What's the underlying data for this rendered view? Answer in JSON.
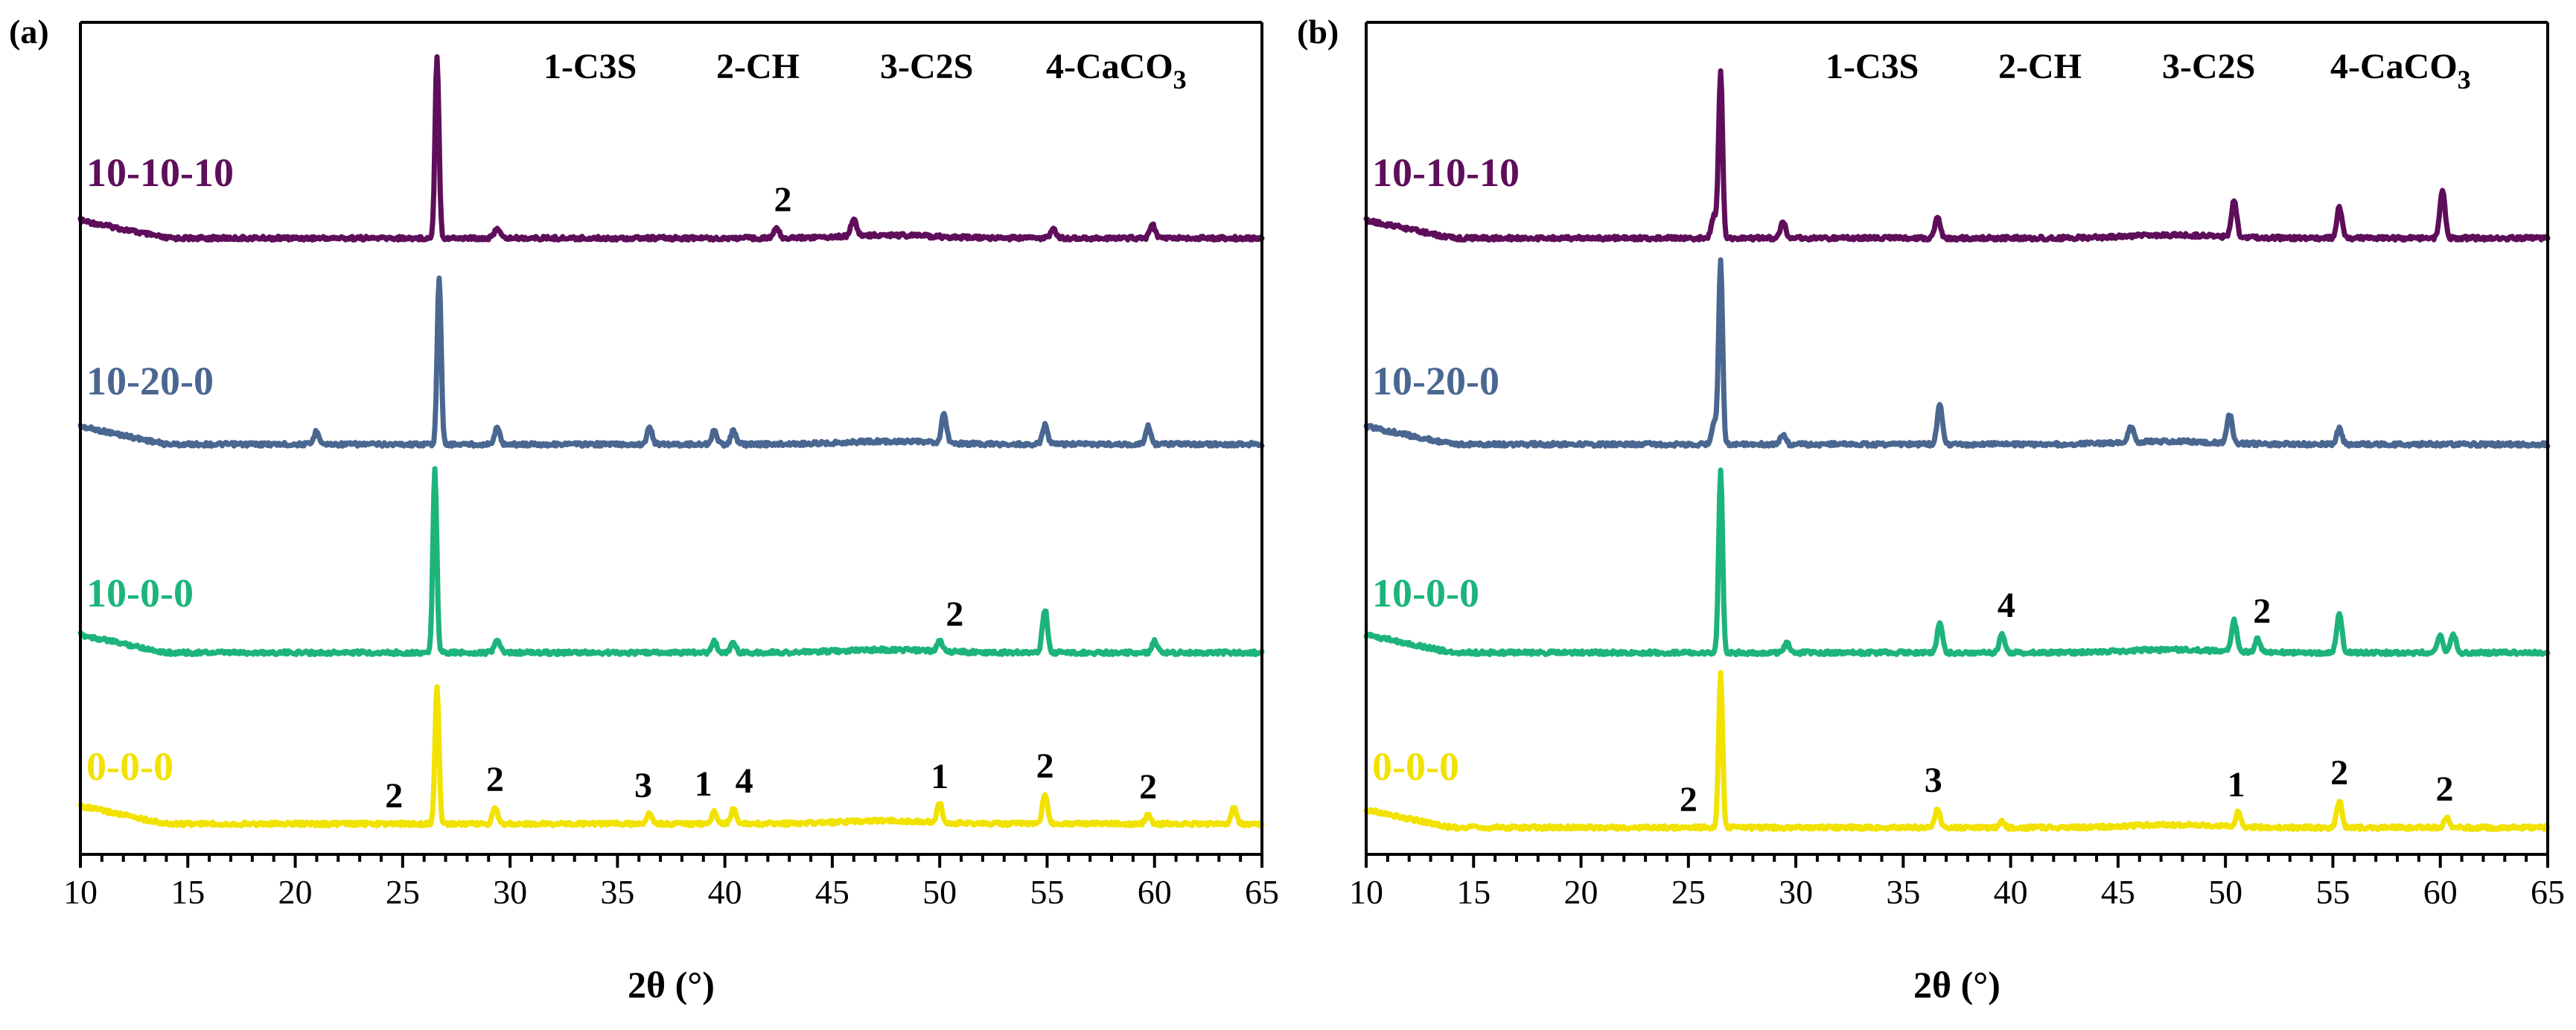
{
  "chart_data": [
    {
      "type": "line",
      "panel_label": "(a)",
      "xlabel": "2θ (°)",
      "xlim": [
        10,
        65
      ],
      "xticks": [
        "10",
        "15",
        "20",
        "25",
        "30",
        "35",
        "40",
        "45",
        "50",
        "55",
        "60",
        "65"
      ],
      "legend_text": [
        "1-C3S",
        "2-CH",
        "3-C2S",
        "4-CaCO"
      ],
      "legend_sub": "3",
      "series": [
        {
          "name": "10-10-10",
          "color": "#5e0e5a",
          "peaks": [
            [
              26.6,
              245
            ],
            [
              29.4,
              14
            ],
            [
              42.4,
              14
            ],
            [
              46.0,
              24
            ],
            [
              55.3,
              13
            ],
            [
              59.9,
              18
            ]
          ]
        },
        {
          "name": "10-20-0",
          "color": "#4a6791",
          "peaks": [
            [
              21.0,
              18
            ],
            [
              26.7,
              225
            ],
            [
              29.4,
              22
            ],
            [
              36.5,
              22
            ],
            [
              39.5,
              18
            ],
            [
              40.4,
              18
            ],
            [
              50.2,
              38
            ],
            [
              54.9,
              26
            ],
            [
              59.7,
              24
            ]
          ]
        },
        {
          "name": "10-0-0",
          "color": "#1db47b",
          "peaks": [
            [
              26.5,
              245
            ],
            [
              29.4,
              18
            ],
            [
              39.5,
              16
            ],
            [
              40.4,
              14
            ],
            [
              50.0,
              14
            ],
            [
              54.9,
              58
            ],
            [
              60.0,
              16
            ]
          ]
        },
        {
          "name": "0-0-0",
          "color": "#f2e200",
          "peaks": [
            [
              26.6,
              185
            ],
            [
              29.3,
              22
            ],
            [
              36.5,
              14
            ],
            [
              39.5,
              16
            ],
            [
              40.4,
              20
            ],
            [
              50.0,
              26
            ],
            [
              54.9,
              40
            ],
            [
              59.7,
              12
            ],
            [
              63.7,
              22
            ]
          ]
        }
      ],
      "peak_labels": [
        {
          "text": "2",
          "x": 42.7,
          "series": "10-10-10"
        },
        {
          "text": "2",
          "x": 50.7,
          "series": "10-0-0"
        },
        {
          "text": "2",
          "x": 24.6,
          "series": "0-0-0"
        },
        {
          "text": "2",
          "x": 29.3,
          "series": "0-0-0"
        },
        {
          "text": "3",
          "x": 36.2,
          "series": "0-0-0"
        },
        {
          "text": "1",
          "x": 39.0,
          "series": "0-0-0"
        },
        {
          "text": "4",
          "x": 40.9,
          "series": "0-0-0"
        },
        {
          "text": "1",
          "x": 50.0,
          "series": "0-0-0"
        },
        {
          "text": "2",
          "x": 54.9,
          "series": "0-0-0"
        },
        {
          "text": "2",
          "x": 59.7,
          "series": "0-0-0"
        }
      ]
    },
    {
      "type": "line",
      "panel_label": "(b)",
      "xlabel": "2θ (°)",
      "xlim": [
        10,
        65
      ],
      "xticks": [
        "10",
        "15",
        "20",
        "25",
        "30",
        "35",
        "40",
        "45",
        "50",
        "55",
        "60",
        "65"
      ],
      "legend_text": [
        "1-C3S",
        "2-CH",
        "3-C2S",
        "4-CaCO"
      ],
      "legend_sub": "3",
      "series": [
        {
          "name": "10-10-10",
          "color": "#5e0e5a",
          "peaks": [
            [
              26.2,
              30
            ],
            [
              26.5,
              225
            ],
            [
              29.4,
              22
            ],
            [
              36.6,
              30
            ],
            [
              50.4,
              50
            ],
            [
              55.3,
              42
            ],
            [
              60.1,
              66
            ]
          ]
        },
        {
          "name": "10-20-0",
          "color": "#4a6791",
          "peaks": [
            [
              26.2,
              30
            ],
            [
              26.5,
              245
            ],
            [
              29.4,
              14
            ],
            [
              36.7,
              52
            ],
            [
              45.6,
              22
            ],
            [
              50.2,
              38
            ],
            [
              55.3,
              22
            ]
          ]
        },
        {
          "name": "10-0-0",
          "color": "#1db47b",
          "peaks": [
            [
              26.5,
              245
            ],
            [
              29.6,
              14
            ],
            [
              36.7,
              40
            ],
            [
              39.6,
              26
            ],
            [
              50.4,
              42
            ],
            [
              51.5,
              18
            ],
            [
              55.3,
              54
            ],
            [
              60.0,
              22
            ],
            [
              60.6,
              26
            ]
          ]
        },
        {
          "name": "0-0-0",
          "color": "#f2e200",
          "peaks": [
            [
              26.5,
              210
            ],
            [
              36.6,
              26
            ],
            [
              39.6,
              8
            ],
            [
              50.6,
              20
            ],
            [
              55.3,
              36
            ],
            [
              60.3,
              14
            ]
          ]
        }
      ],
      "peak_labels": [
        {
          "text": "4",
          "x": 39.8,
          "series": "10-0-0"
        },
        {
          "text": "2",
          "x": 51.7,
          "series": "10-0-0"
        },
        {
          "text": "2",
          "x": 25.0,
          "series": "0-0-0"
        },
        {
          "text": "3",
          "x": 36.4,
          "series": "0-0-0"
        },
        {
          "text": "1",
          "x": 50.5,
          "series": "0-0-0"
        },
        {
          "text": "2",
          "x": 55.3,
          "series": "0-0-0"
        },
        {
          "text": "2",
          "x": 60.2,
          "series": "0-0-0"
        }
      ]
    }
  ]
}
